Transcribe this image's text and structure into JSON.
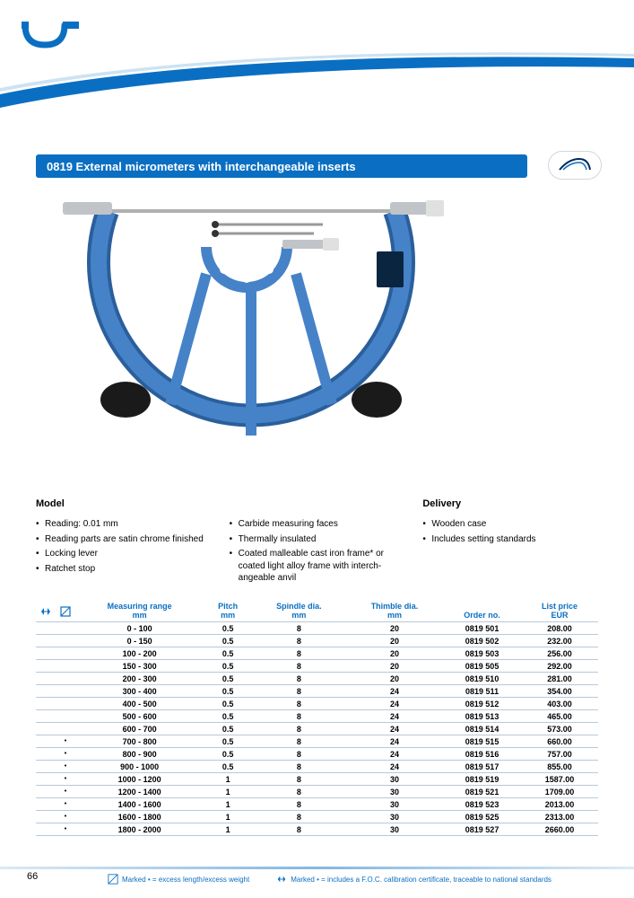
{
  "colors": {
    "primary": "#0a6fc2",
    "light_border": "#b8c9d9",
    "text": "#000000",
    "white": "#ffffff"
  },
  "header": {
    "title": "0819  External micrometers with interchangeable inserts"
  },
  "specs": {
    "model_heading": "Model",
    "delivery_heading": "Delivery",
    "col1": [
      "Reading: 0.01 mm",
      "Reading parts are satin chrome finished",
      "Locking lever",
      "Ratchet stop"
    ],
    "col2": [
      "Carbide measuring faces",
      "Thermally insulated",
      "Coated malleable cast iron frame* or coated light alloy frame with interch­angeable anvil"
    ],
    "col3": [
      "Wooden case",
      "Includes setting standards"
    ]
  },
  "table": {
    "columns": [
      {
        "label": "Measuring range",
        "unit": "mm"
      },
      {
        "label": "Pitch",
        "unit": "mm"
      },
      {
        "label": "Spindle dia.",
        "unit": "mm"
      },
      {
        "label": "Thimble dia.",
        "unit": "mm"
      },
      {
        "label": "Order no.",
        "unit": ""
      },
      {
        "label": "List price",
        "unit": "EUR"
      }
    ],
    "rows": [
      {
        "mark1": "",
        "mark2": "",
        "range": "0 - 100",
        "pitch": "0.5",
        "spindle": "8",
        "thimble": "20",
        "order": "0819 501",
        "price": "208.00"
      },
      {
        "mark1": "",
        "mark2": "",
        "range": "0 - 150",
        "pitch": "0.5",
        "spindle": "8",
        "thimble": "20",
        "order": "0819 502",
        "price": "232.00"
      },
      {
        "mark1": "",
        "mark2": "",
        "range": "100 - 200",
        "pitch": "0.5",
        "spindle": "8",
        "thimble": "20",
        "order": "0819 503",
        "price": "256.00"
      },
      {
        "mark1": "",
        "mark2": "",
        "range": "150 - 300",
        "pitch": "0.5",
        "spindle": "8",
        "thimble": "20",
        "order": "0819 505",
        "price": "292.00"
      },
      {
        "mark1": "",
        "mark2": "",
        "range": "200 - 300",
        "pitch": "0.5",
        "spindle": "8",
        "thimble": "20",
        "order": "0819 510",
        "price": "281.00"
      },
      {
        "mark1": "",
        "mark2": "",
        "range": "300 - 400",
        "pitch": "0.5",
        "spindle": "8",
        "thimble": "24",
        "order": "0819 511",
        "price": "354.00"
      },
      {
        "mark1": "",
        "mark2": "",
        "range": "400 - 500",
        "pitch": "0.5",
        "spindle": "8",
        "thimble": "24",
        "order": "0819 512",
        "price": "403.00"
      },
      {
        "mark1": "",
        "mark2": "",
        "range": "500 - 600",
        "pitch": "0.5",
        "spindle": "8",
        "thimble": "24",
        "order": "0819 513",
        "price": "465.00"
      },
      {
        "mark1": "",
        "mark2": "",
        "range": "600 - 700",
        "pitch": "0.5",
        "spindle": "8",
        "thimble": "24",
        "order": "0819 514",
        "price": "573.00"
      },
      {
        "mark1": "",
        "mark2": "•",
        "range": "700 - 800",
        "pitch": "0.5",
        "spindle": "8",
        "thimble": "24",
        "order": "0819 515",
        "price": "660.00"
      },
      {
        "mark1": "",
        "mark2": "•",
        "range": "800 - 900",
        "pitch": "0.5",
        "spindle": "8",
        "thimble": "24",
        "order": "0819 516",
        "price": "757.00"
      },
      {
        "mark1": "",
        "mark2": "•",
        "range": "900 - 1000",
        "pitch": "0.5",
        "spindle": "8",
        "thimble": "24",
        "order": "0819 517",
        "price": "855.00"
      },
      {
        "mark1": "",
        "mark2": "•",
        "range": "1000 - 1200",
        "pitch": "1",
        "spindle": "8",
        "thimble": "30",
        "order": "0819 519",
        "price": "1587.00"
      },
      {
        "mark1": "",
        "mark2": "•",
        "range": "1200 - 1400",
        "pitch": "1",
        "spindle": "8",
        "thimble": "30",
        "order": "0819 521",
        "price": "1709.00"
      },
      {
        "mark1": "",
        "mark2": "•",
        "range": "1400 - 1600",
        "pitch": "1",
        "spindle": "8",
        "thimble": "30",
        "order": "0819 523",
        "price": "2013.00"
      },
      {
        "mark1": "",
        "mark2": "•",
        "range": "1600 - 1800",
        "pitch": "1",
        "spindle": "8",
        "thimble": "30",
        "order": "0819 525",
        "price": "2313.00"
      },
      {
        "mark1": "",
        "mark2": "•",
        "range": "1800 - 2000",
        "pitch": "1",
        "spindle": "8",
        "thimble": "30",
        "order": "0819 527",
        "price": "2660.00"
      }
    ]
  },
  "footer": {
    "page": "66",
    "note1": "Marked • = excess length/excess weight",
    "note2": "Marked • = includes a F.O.C. calibration certificate, traceable to national standards"
  }
}
